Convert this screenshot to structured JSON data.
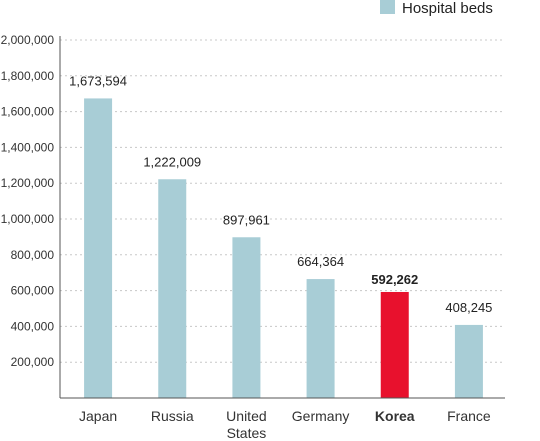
{
  "chart_data": {
    "type": "bar",
    "categories": [
      "Japan",
      "Russia",
      "United States",
      "Germany",
      "Korea",
      "France"
    ],
    "category_lines": [
      [
        "Japan"
      ],
      [
        "Russia"
      ],
      [
        "United",
        "States"
      ],
      [
        "Germany"
      ],
      [
        "Korea"
      ],
      [
        "France"
      ]
    ],
    "series": [
      {
        "name": "Hospital beds",
        "values": [
          1673594,
          1222009,
          897961,
          664364,
          592262,
          408245
        ],
        "value_labels": [
          "1,673,594",
          "1,222,009",
          "897,961",
          "664,364",
          "592,262",
          "408,245"
        ]
      }
    ],
    "highlight": {
      "category": "Korea",
      "color": "#e8112d"
    },
    "bar_color": "#a8cdd6",
    "ylim": [
      0,
      2000000
    ],
    "yticks": [
      200000,
      400000,
      600000,
      800000,
      1000000,
      1200000,
      1400000,
      1600000,
      1800000,
      2000000
    ],
    "ytick_labels": [
      "200,000",
      "400,000",
      "600,000",
      "800,000",
      "1,000,000",
      "1,200,000",
      "1,400,000",
      "1,600,000",
      "1,800,000",
      "2,000,000"
    ],
    "grid": "dashed-horizontal",
    "legend": {
      "position": "top-right",
      "label": "Hospital beds"
    }
  }
}
